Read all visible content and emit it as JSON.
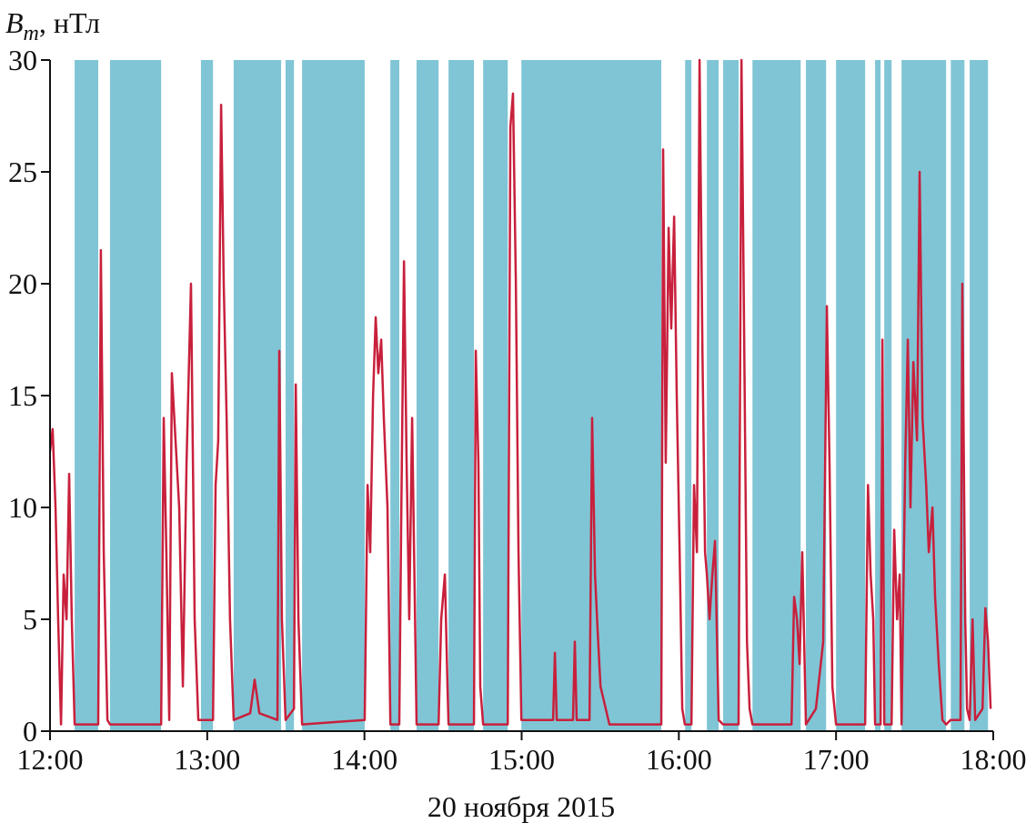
{
  "chart_data": {
    "type": "line",
    "y_label": "B",
    "y_label_sub": "m",
    "y_label_rest": ", нТл",
    "x_label": "20 ноября 2015",
    "xlim": [
      0,
      360
    ],
    "xticks": [
      {
        "value": 0,
        "label": "12:00"
      },
      {
        "value": 60,
        "label": "13:00"
      },
      {
        "value": 120,
        "label": "14:00"
      },
      {
        "value": 180,
        "label": "15:00"
      },
      {
        "value": 240,
        "label": "16:00"
      },
      {
        "value": 300,
        "label": "17:00"
      },
      {
        "value": 360,
        "label": "18:00"
      }
    ],
    "ylim": [
      0,
      30
    ],
    "yticks": [
      0,
      5,
      10,
      15,
      20,
      25,
      30
    ],
    "band_color": "#80c5d5",
    "bands": [
      [
        9.4,
        18.4
      ],
      [
        22.9,
        42.4
      ],
      [
        57.6,
        62.2
      ],
      [
        70.1,
        88.2
      ],
      [
        89.9,
        93.1
      ],
      [
        96.2,
        120.1
      ],
      [
        129.9,
        133.3
      ],
      [
        139.9,
        148.3
      ],
      [
        152.1,
        161.8
      ],
      [
        165.3,
        174.7
      ],
      [
        179.9,
        233.3
      ],
      [
        242.4,
        244.8
      ],
      [
        250.7,
        255.2
      ],
      [
        256.9,
        262.8
      ],
      [
        268.1,
        286.5
      ],
      [
        288.5,
        296.2
      ],
      [
        300,
        311.1
      ],
      [
        314.9,
        317
      ],
      [
        318.4,
        321.2
      ],
      [
        325,
        342
      ],
      [
        343.8,
        349
      ],
      [
        351,
        358
      ]
    ],
    "series": [
      {
        "color": "#c8203c",
        "x": [
          0,
          1.0,
          2.1,
          3.1,
          4.2,
          5.2,
          6.3,
          7.3,
          8.3,
          9.4,
          18.4,
          19.4,
          20.5,
          21.9,
          22.9,
          42.4,
          43.4,
          44.4,
          45.5,
          46.5,
          47.9,
          49.3,
          50.7,
          52.1,
          53.8,
          55.2,
          56.6,
          62.2,
          63.2,
          64.2,
          65.3,
          66.3,
          67.4,
          68.7,
          70.1,
          76.4,
          78.1,
          79.9,
          86.8,
          87.5,
          88.5,
          89.9,
          93.1,
          93.8,
          94.8,
          96.2,
          120.1,
          121.2,
          122.2,
          123.3,
          124.3,
          125.3,
          126.4,
          127.4,
          128.8,
          129.9,
          133.3,
          134.0,
          135.1,
          136.1,
          137.1,
          138.2,
          139.2,
          139.9,
          148.3,
          149.3,
          150.7,
          151.7,
          152.1,
          161.8,
          162.5,
          163.5,
          164.2,
          165.3,
          174.7,
          175.7,
          176.7,
          177.8,
          178.8,
          179.9,
          192.0,
          192.7,
          193.4,
          199.6,
          200.3,
          201.0,
          205.9,
          206.9,
          208.0,
          209.0,
          210.1,
          213.5,
          233.3,
          234.0,
          235.0,
          236.1,
          237.1,
          238.2,
          239.2,
          240.3,
          241.3,
          242.3,
          244.8,
          245.8,
          246.9,
          247.9,
          249.0,
          250.0,
          250.7,
          251.7,
          252.8,
          253.8,
          255.2,
          256.9,
          262.8,
          263.9,
          264.9,
          266.0,
          267.0,
          268.1,
          283.0,
          284.0,
          285.1,
          286.1,
          287.1,
          288.2,
          288.5,
          292.3,
          295.1,
          296.5,
          297.5,
          298.6,
          300.0,
          311.1,
          312.2,
          313.2,
          314.2,
          314.9,
          317.0,
          317.7,
          318.4,
          321.2,
          322.2,
          323.3,
          324.3,
          325.0,
          326.4,
          327.4,
          328.4,
          329.5,
          330.9,
          331.9,
          333.0,
          334.4,
          335.4,
          336.8,
          337.8,
          339.2,
          340.6,
          342.0,
          343.7,
          347.5,
          348.2,
          349.3,
          350.0,
          351.0,
          352.1,
          353.1,
          355.9,
          357.0,
          358.0,
          359.0
        ],
        "values": [
          12.5,
          13.5,
          10,
          5,
          0.3,
          7,
          5,
          11.5,
          5,
          0.3,
          0.3,
          21.5,
          8,
          0.5,
          0.3,
          0.3,
          14,
          8,
          0.5,
          16,
          13,
          10,
          2,
          12,
          20,
          5,
          0.5,
          0.5,
          11,
          13,
          28,
          20,
          14,
          5,
          0.5,
          0.8,
          2.3,
          0.8,
          0.5,
          17,
          5,
          0.5,
          1,
          15.5,
          5,
          0.3,
          0.5,
          11,
          8,
          15,
          18.5,
          16,
          17.5,
          14,
          10,
          0.3,
          0.3,
          9,
          21,
          12,
          5,
          14,
          6,
          0.3,
          0.3,
          5,
          7,
          2,
          0.3,
          0.3,
          17,
          12,
          2,
          0.3,
          0.3,
          27,
          28.5,
          20,
          8,
          0.5,
          0.5,
          3.5,
          0.5,
          0.5,
          4,
          0.5,
          0.5,
          14,
          7,
          4.5,
          2,
          0.3,
          0.3,
          26,
          12,
          22.5,
          18,
          23,
          15,
          8,
          1,
          0.3,
          0.3,
          11,
          8,
          30,
          17,
          8,
          7,
          5,
          7,
          8.5,
          0.5,
          0.3,
          0.3,
          30,
          18,
          4,
          1,
          0.3,
          0.3,
          6,
          5,
          3,
          8,
          2,
          0.3,
          1,
          4,
          19,
          12,
          2,
          0.3,
          0.3,
          11,
          7,
          5,
          0.3,
          0.3,
          17.5,
          0.3,
          0.3,
          9,
          5,
          7,
          0.3,
          12,
          17.5,
          10,
          16.5,
          13,
          25,
          14,
          11,
          8,
          10,
          6,
          3,
          0.5,
          0.3,
          0.5,
          0.5,
          20,
          5,
          1,
          0.5,
          5,
          0.5,
          1,
          5.5,
          4,
          1
        ]
      }
    ]
  }
}
